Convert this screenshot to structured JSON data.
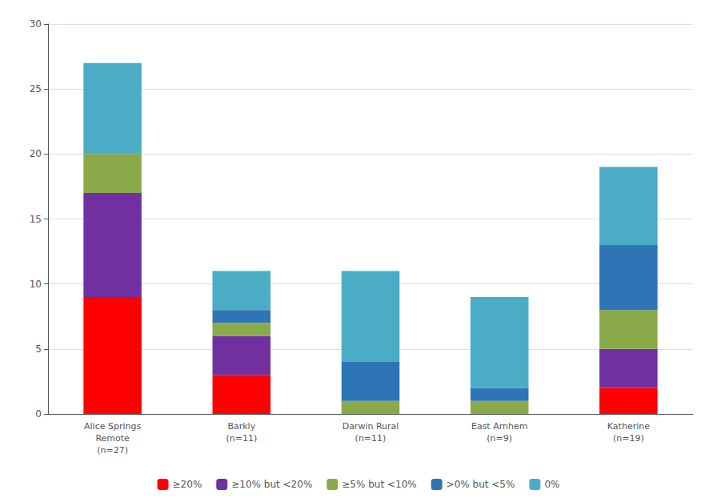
{
  "chart_data": {
    "type": "bar",
    "stacked": true,
    "categories": [
      "Alice Springs\nRemote\n(n=27)",
      "Barkly\n(n=11)",
      "Darwin Rural\n(n=11)",
      "East Arnhem\n(n=9)",
      "Katherine\n(n=19)"
    ],
    "series": [
      {
        "name": "≥20%",
        "color": "#FF0000",
        "values": [
          9,
          3,
          0,
          0,
          2
        ]
      },
      {
        "name": "≥10% but <20%",
        "color": "#7030A0",
        "values": [
          8,
          3,
          0,
          0,
          3
        ]
      },
      {
        "name": "≥5% but <10%",
        "color": "#8AAA4A",
        "values": [
          3,
          1,
          1,
          1,
          3
        ]
      },
      {
        "name": ">0% but <5%",
        "color": "#2E75B6",
        "values": [
          0,
          1,
          3,
          1,
          5
        ]
      },
      {
        "name": "0%",
        "color": "#4BACC6",
        "values": [
          7,
          3,
          7,
          7,
          6
        ]
      }
    ],
    "ylim": [
      0,
      30
    ],
    "yticks": [
      0,
      5,
      10,
      15,
      20,
      25,
      30
    ],
    "grid": true,
    "legend": "bottom"
  }
}
